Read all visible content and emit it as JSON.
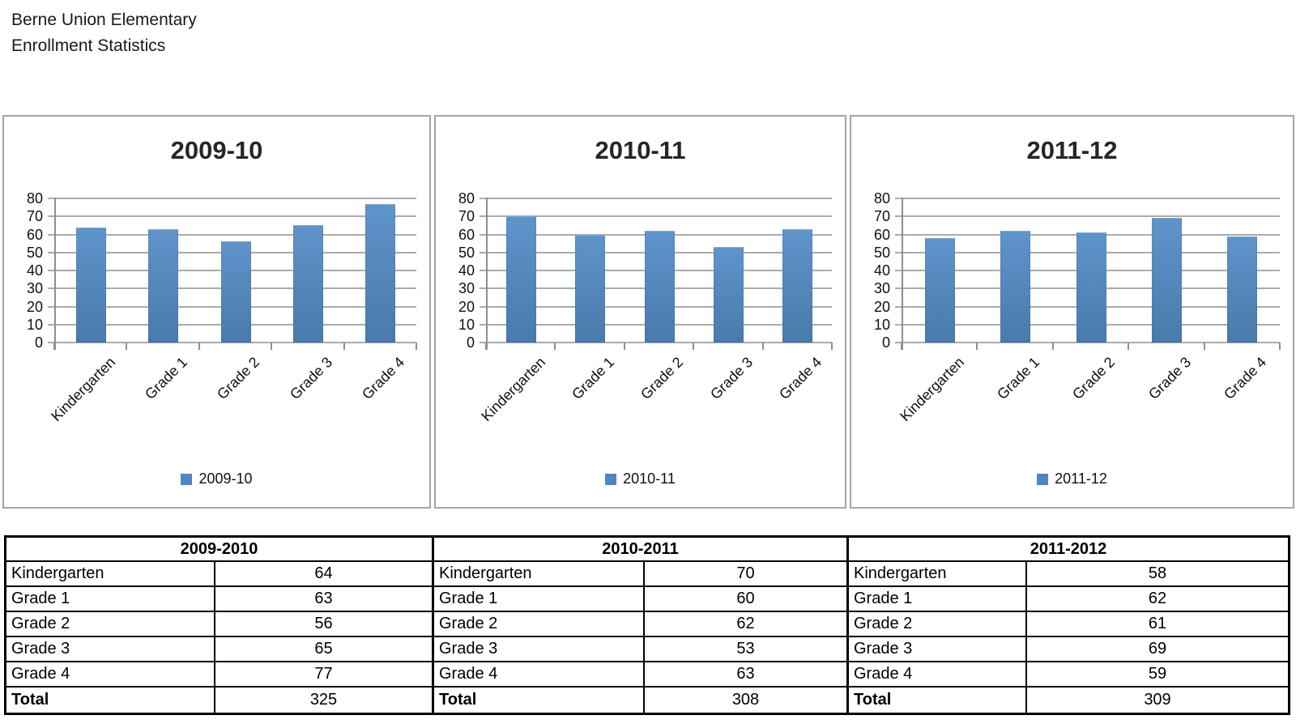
{
  "document": {
    "title_line1": "Berne Union Elementary",
    "title_line2": "Enrollment Statistics"
  },
  "colors": {
    "bar_gradient_top": "#5f94cb",
    "bar_gradient_bottom": "#497aab",
    "legend_swatch": "#4f86be",
    "gridline": "#ababab",
    "axis_line": "#8f8f8f",
    "panel_border": "#a6a6a6",
    "chart_title_text": "#262626",
    "table_border": "#000000"
  },
  "chart_data": [
    {
      "type": "bar",
      "title": "2009-10",
      "categories": [
        "Kindergarten",
        "Grade 1",
        "Grade 2",
        "Grade 3",
        "Grade 4"
      ],
      "values": [
        64,
        63,
        56,
        65,
        77
      ],
      "ylim": [
        0,
        80
      ],
      "yticks": [
        0,
        10,
        20,
        30,
        40,
        50,
        60,
        70,
        80
      ],
      "grid": true,
      "legend": "2009-10",
      "legend_position": "bottom"
    },
    {
      "type": "bar",
      "title": "2010-11",
      "categories": [
        "Kindergarten",
        "Grade 1",
        "Grade 2",
        "Grade 3",
        "Grade 4"
      ],
      "values": [
        70,
        60,
        62,
        53,
        63
      ],
      "ylim": [
        0,
        80
      ],
      "yticks": [
        0,
        10,
        20,
        30,
        40,
        50,
        60,
        70,
        80
      ],
      "grid": true,
      "legend": "2010-11",
      "legend_position": "bottom"
    },
    {
      "type": "bar",
      "title": "2011-12",
      "categories": [
        "Kindergarten",
        "Grade 1",
        "Grade 2",
        "Grade 3",
        "Grade 4"
      ],
      "values": [
        58,
        62,
        61,
        69,
        59
      ],
      "ylim": [
        0,
        80
      ],
      "yticks": [
        0,
        10,
        20,
        30,
        40,
        50,
        60,
        70,
        80
      ],
      "grid": true,
      "legend": "2011-12",
      "legend_position": "bottom"
    }
  ],
  "table": {
    "sections": [
      {
        "header": "2009-2010",
        "rows": [
          [
            "Kindergarten",
            "64"
          ],
          [
            "Grade 1",
            "63"
          ],
          [
            "Grade 2",
            "56"
          ],
          [
            "Grade 3",
            "65"
          ],
          [
            "Grade 4",
            "77"
          ]
        ],
        "total_label": "Total",
        "total_value": "325"
      },
      {
        "header": "2010-2011",
        "rows": [
          [
            "Kindergarten",
            "70"
          ],
          [
            "Grade 1",
            "60"
          ],
          [
            "Grade 2",
            "62"
          ],
          [
            "Grade 3",
            "53"
          ],
          [
            "Grade 4",
            "63"
          ]
        ],
        "total_label": "Total",
        "total_value": "308"
      },
      {
        "header": "2011-2012",
        "rows": [
          [
            "Kindergarten",
            "58"
          ],
          [
            "Grade 1",
            "62"
          ],
          [
            "Grade 2",
            "61"
          ],
          [
            "Grade 3",
            "69"
          ],
          [
            "Grade 4",
            "59"
          ]
        ],
        "total_label": "Total",
        "total_value": "309"
      }
    ]
  }
}
